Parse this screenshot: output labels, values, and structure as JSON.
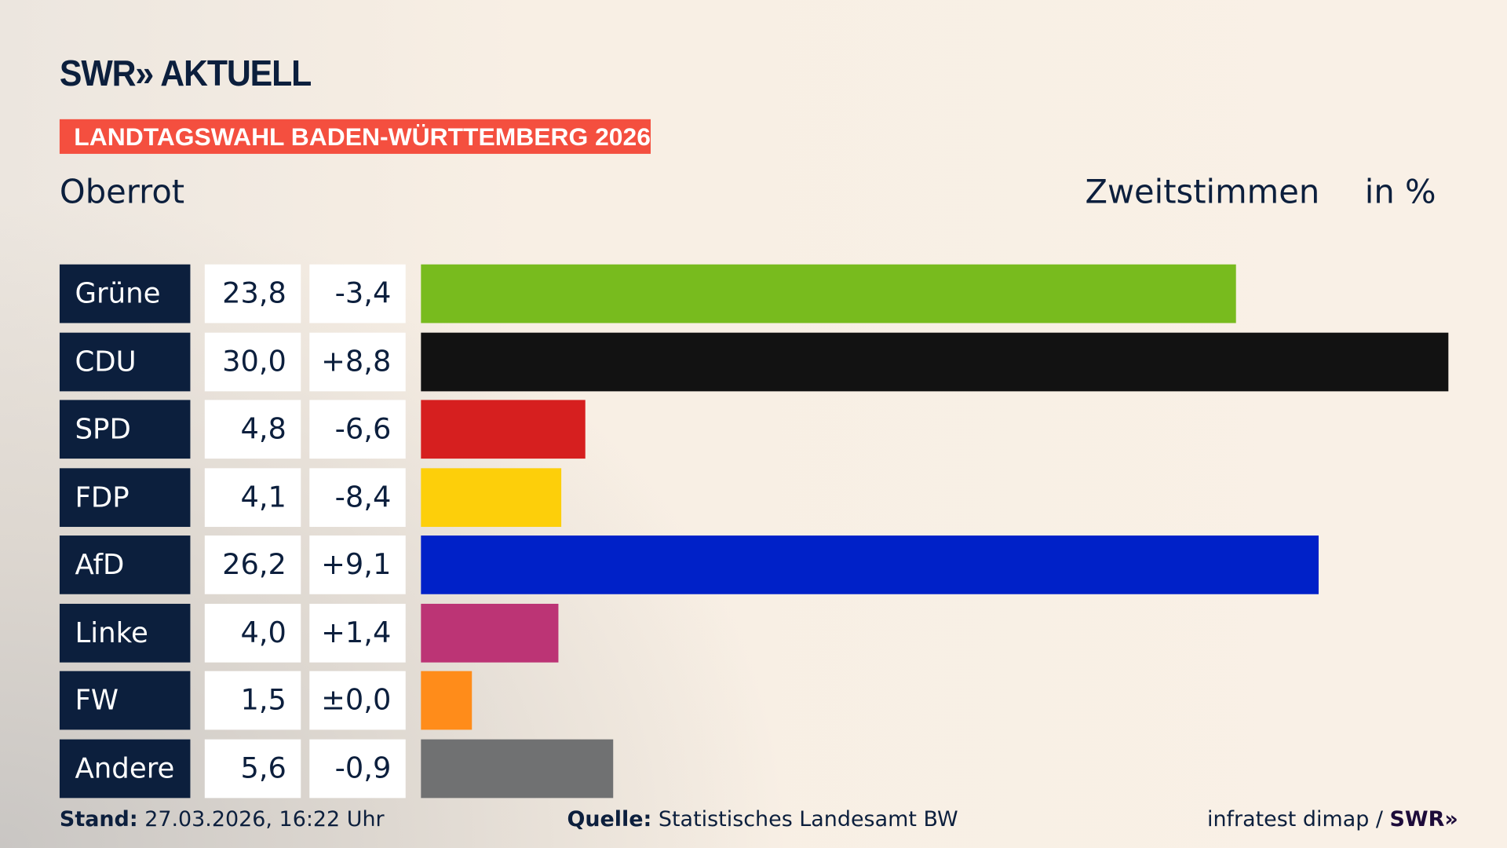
{
  "header": {
    "logo": "SWR» AKTUELL",
    "banner": "LANDTAGSWAHL BADEN-WÜRTTEMBERG 2026",
    "region": "Oberrot",
    "measure": "Zweitstimmen",
    "unit": "in %"
  },
  "chart_data": {
    "type": "bar",
    "orientation": "horizontal",
    "xlim": [
      0,
      30
    ],
    "categories": [
      "Grüne",
      "CDU",
      "SPD",
      "FDP",
      "AfD",
      "Linke",
      "FW",
      "Andere"
    ],
    "values": [
      23.8,
      30.0,
      4.8,
      4.1,
      26.2,
      4.0,
      1.5,
      5.6
    ],
    "value_labels": [
      "23,8",
      "30,0",
      "4,8",
      "4,1",
      "26,2",
      "4,0",
      "1,5",
      "5,6"
    ],
    "change_labels": [
      "-3,4",
      "+8,8",
      "-6,6",
      "-8,4",
      "+9,1",
      "+1,4",
      "±0,0",
      "-0,9"
    ],
    "colors": [
      "#78bb1e",
      "#121212",
      "#d61f1f",
      "#fdcf0a",
      "#0021c8",
      "#bc3475",
      "#ff8c1a",
      "#707172"
    ]
  },
  "footer": {
    "stand_label": "Stand:",
    "stand_value": "27.03.2026, 16:22 Uhr",
    "source_label": "Quelle:",
    "source_value": "Statistisches Landesamt BW",
    "credit": "infratest dimap / ",
    "credit_logo": "SWR»"
  }
}
